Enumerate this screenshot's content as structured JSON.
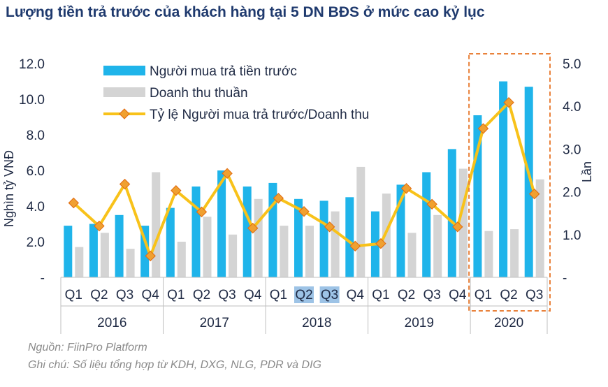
{
  "title": "Lượng tiền trả trước của khách hàng tại 5 DN BĐS ở mức cao kỷ lục",
  "source": "Nguồn: FiinPro Platform",
  "note": "Ghi chú: Số liệu tổng hợp từ KDH, DXG, NLG, PDR và DIG",
  "colors": {
    "prepayment": "#1fb4ea",
    "revenue": "#d4d4d4",
    "ratio_line": "#f8c21a",
    "ratio_marker": "#f0a030",
    "highlight_box": "#e9813a",
    "axis_text": "#1f2a44",
    "title": "#1f3a6e",
    "footnote": "#8a8a8a"
  },
  "chart_data": {
    "type": "bar",
    "categories": [
      "Q1",
      "Q2",
      "Q3",
      "Q4",
      "Q1",
      "Q2",
      "Q3",
      "Q4",
      "Q1",
      "Q2",
      "Q3",
      "Q4",
      "Q1",
      "Q2",
      "Q3",
      "Q4",
      "Q1",
      "Q2",
      "Q3"
    ],
    "years": [
      {
        "label": "2016",
        "count": 4
      },
      {
        "label": "2017",
        "count": 4
      },
      {
        "label": "2018",
        "count": 4
      },
      {
        "label": "2019",
        "count": 4
      },
      {
        "label": "2020",
        "count": 3
      }
    ],
    "highlighted_ticks": [
      9,
      10
    ],
    "highlighted_year": "2020",
    "series": [
      {
        "name": "Người mua trả tiền trước",
        "kind": "bar",
        "axis": "left",
        "values": [
          2.9,
          3.0,
          3.5,
          2.9,
          3.9,
          5.1,
          6.0,
          5.1,
          5.3,
          4.4,
          4.3,
          4.5,
          3.7,
          5.2,
          5.9,
          7.2,
          9.1,
          11.0,
          10.7
        ]
      },
      {
        "name": "Doanh thu thuần",
        "kind": "bar",
        "axis": "left",
        "values": [
          1.7,
          2.5,
          1.6,
          5.9,
          2.0,
          3.4,
          2.4,
          4.4,
          2.9,
          2.9,
          3.7,
          6.2,
          4.7,
          2.5,
          3.5,
          6.1,
          2.6,
          2.7,
          5.5
        ]
      },
      {
        "name": "Tỷ lệ Người mua trả trước/Doanh thu",
        "kind": "line",
        "axis": "right",
        "values": [
          1.74,
          1.2,
          2.18,
          0.5,
          2.03,
          1.53,
          2.43,
          1.15,
          1.85,
          1.54,
          1.18,
          0.73,
          0.79,
          2.08,
          1.71,
          1.18,
          3.48,
          4.09,
          1.95
        ]
      }
    ],
    "y_left": {
      "label": "Nghìn tỷ VNĐ",
      "min": 0,
      "max": 12,
      "ticks": [
        "-",
        "2.0",
        "4.0",
        "6.0",
        "8.0",
        "10.0",
        "12.0"
      ]
    },
    "y_right": {
      "label": "Lần",
      "min": 0,
      "max": 5,
      "ticks": [
        "-",
        "1.0",
        "2.0",
        "3.0",
        "4.0",
        "5.0"
      ]
    },
    "legend_position": "top-left",
    "grid": false
  }
}
